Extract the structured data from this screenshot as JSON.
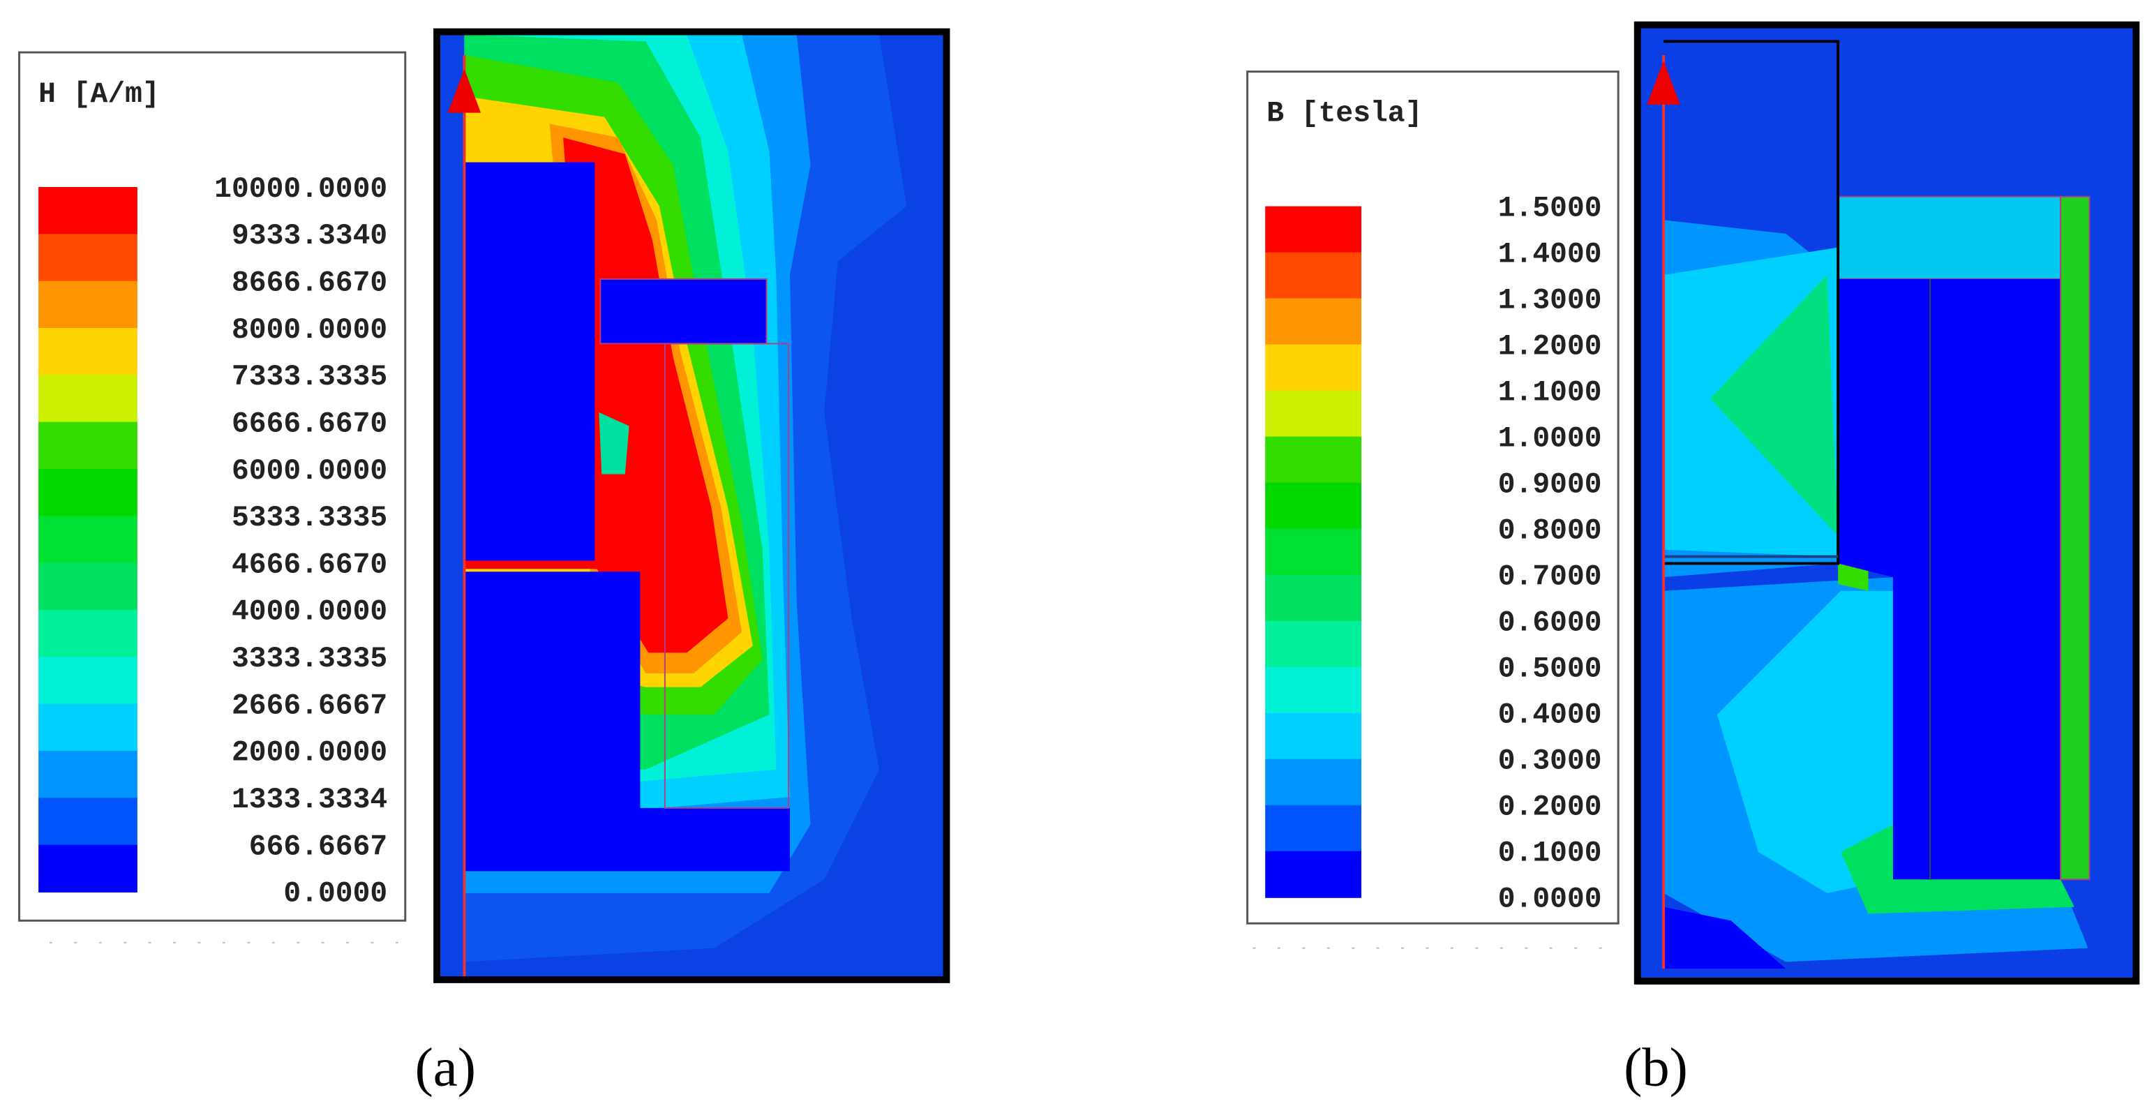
{
  "panels": [
    {
      "label": "(a)",
      "legend": {
        "title": "H [A/m]",
        "labels": [
          "10000.0000",
          "9333.3340",
          "8666.6670",
          "8000.0000",
          "7333.3335",
          "6666.6670",
          "6000.0000",
          "5333.3335",
          "4666.6670",
          "4000.0000",
          "3333.3335",
          "2666.6667",
          "2000.0000",
          "1333.3334",
          "666.6667",
          "0.0000"
        ]
      }
    },
    {
      "label": "(b)",
      "legend": {
        "title": "B [tesla]",
        "labels": [
          "1.5000",
          "1.4000",
          "1.3000",
          "1.2000",
          "1.1000",
          "1.0000",
          "0.9000",
          "0.8000",
          "0.7000",
          "0.6000",
          "0.5000",
          "0.4000",
          "0.3000",
          "0.2000",
          "0.1000",
          "0.0000"
        ]
      }
    }
  ],
  "colormap": [
    "#ff0000",
    "#ff4a00",
    "#ff9500",
    "#ffd400",
    "#ccf000",
    "#33dd00",
    "#00d800",
    "#00e030",
    "#00e060",
    "#00f09a",
    "#00f0d8",
    "#00d0ff",
    "#0095ff",
    "#0055ff",
    "#0000ff"
  ]
}
